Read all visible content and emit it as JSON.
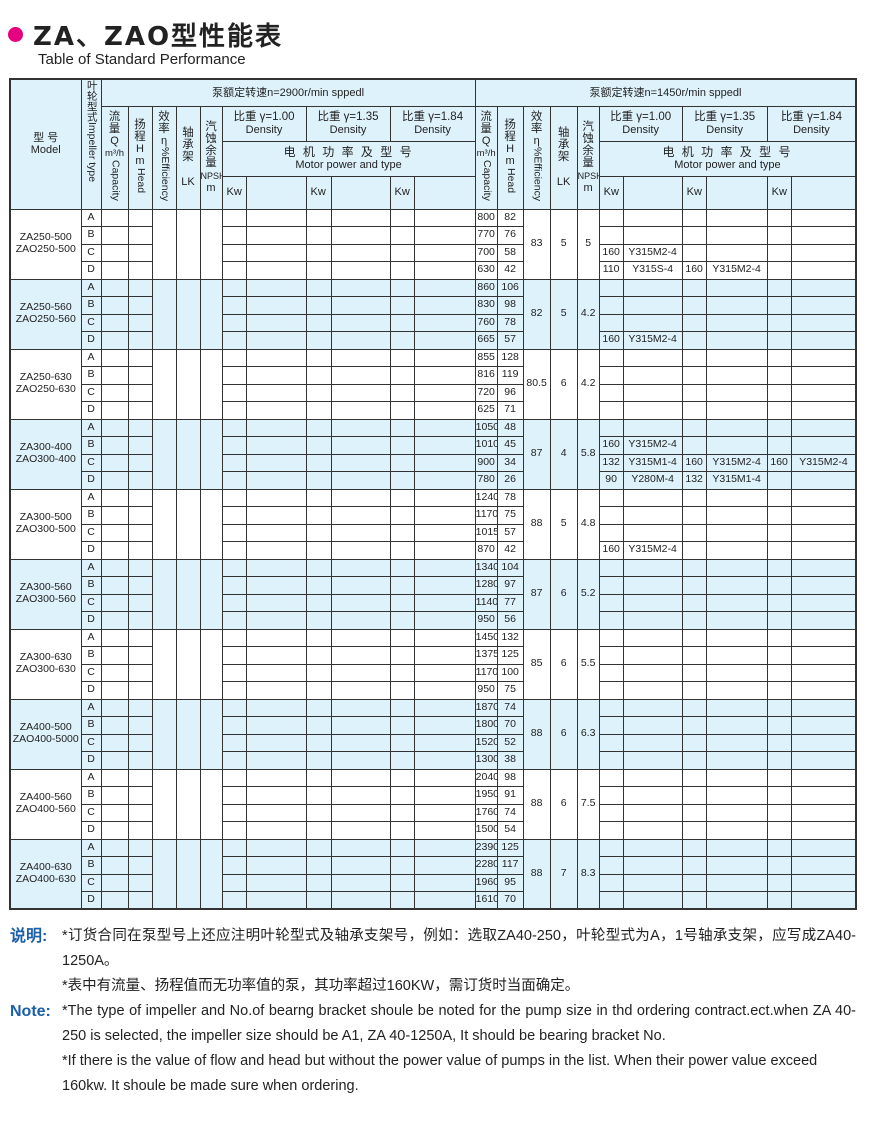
{
  "header": {
    "title": "ZA、ZAO型性能表",
    "subtitle": "Table of Standard Performance",
    "bullet_color": "#e5007f"
  },
  "table": {
    "colors": {
      "header_bg": "#def2fb",
      "band_bg": "#def2fb",
      "border": "#333333"
    },
    "col_model_cn": "型  号",
    "col_model_en": "Model",
    "col_impeller": "叶轮型式",
    "col_impeller_en": "Impeller type",
    "col_q_cn": "流量",
    "col_q_sym": "Q",
    "col_q_unit": "m³/h",
    "col_q_en": "Capacity",
    "col_h_cn": "扬程",
    "col_h_sym": "H",
    "col_h_unit": "m",
    "col_h_en": "Head",
    "col_eff_cn": "效率",
    "col_eff_sym": "η",
    "col_eff_en": "%Efficiency",
    "col_lk_cn": "轴承架",
    "col_lk_en": "LK",
    "col_npsh_cn": "汽蚀余量",
    "col_npsh_en": "NPSH",
    "col_npsh_unit": "m",
    "speed_2900": "泵额定转速n=2900r/min        sppedl",
    "speed_1450": "泵额定转速n=1450r/min        sppedl",
    "density": [
      "比重 γ=1.00",
      "比重 γ=1.35",
      "比重 γ=1.84"
    ],
    "density_en": "Density",
    "motor_cn": "电 机 功 率 及 型 号",
    "motor_en": "Motor power and type",
    "kw": "Kw",
    "groups": [
      {
        "model_a": "ZA250-500",
        "model_b": "ZAO250-500",
        "eff": "83",
        "lk": "5",
        "npsh": "5",
        "band": "white",
        "rows": [
          {
            "imp": "A",
            "q": "800",
            "h": "82",
            "m": []
          },
          {
            "imp": "B",
            "q": "770",
            "h": "76",
            "m": []
          },
          {
            "imp": "C",
            "q": "700",
            "h": "58",
            "m": [
              [
                "160",
                "Y315M2-4"
              ]
            ]
          },
          {
            "imp": "D",
            "q": "630",
            "h": "42",
            "m": [
              [
                "110",
                "Y315S-4"
              ],
              [
                "160",
                "Y315M2-4"
              ]
            ]
          }
        ]
      },
      {
        "model_a": "ZA250-560",
        "model_b": "ZAO250-560",
        "eff": "82",
        "lk": "5",
        "npsh": "4.2",
        "band": "blue",
        "rows": [
          {
            "imp": "A",
            "q": "860",
            "h": "106",
            "m": []
          },
          {
            "imp": "B",
            "q": "830",
            "h": "98",
            "m": []
          },
          {
            "imp": "C",
            "q": "760",
            "h": "78",
            "m": []
          },
          {
            "imp": "D",
            "q": "665",
            "h": "57",
            "m": [
              [
                "160",
                "Y315M2-4"
              ]
            ]
          }
        ]
      },
      {
        "model_a": "ZA250-630",
        "model_b": "ZAO250-630",
        "eff": "80.5",
        "lk": "6",
        "npsh": "4.2",
        "band": "white",
        "rows": [
          {
            "imp": "A",
            "q": "855",
            "h": "128",
            "m": []
          },
          {
            "imp": "B",
            "q": "816",
            "h": "119",
            "m": []
          },
          {
            "imp": "C",
            "q": "720",
            "h": "96",
            "m": []
          },
          {
            "imp": "D",
            "q": "625",
            "h": "71",
            "m": []
          }
        ]
      },
      {
        "model_a": "ZA300-400",
        "model_b": "ZAO300-400",
        "eff": "87",
        "lk": "4",
        "npsh": "5.8",
        "band": "blue",
        "rows": [
          {
            "imp": "A",
            "q": "1050",
            "h": "48",
            "m": []
          },
          {
            "imp": "B",
            "q": "1010",
            "h": "45",
            "m": [
              [
                "160",
                "Y315M2-4"
              ]
            ]
          },
          {
            "imp": "C",
            "q": "900",
            "h": "34",
            "m": [
              [
                "132",
                "Y315M1-4"
              ],
              [
                "160",
                "Y315M2-4"
              ],
              [
                "160",
                "Y315M2-4"
              ]
            ]
          },
          {
            "imp": "D",
            "q": "780",
            "h": "26",
            "m": [
              [
                "90",
                "Y280M-4"
              ],
              [
                "132",
                "Y315M1-4"
              ]
            ]
          }
        ]
      },
      {
        "model_a": "ZA300-500",
        "model_b": "ZAO300-500",
        "eff": "88",
        "lk": "5",
        "npsh": "4.8",
        "band": "white",
        "rows": [
          {
            "imp": "A",
            "q": "1240",
            "h": "78",
            "m": []
          },
          {
            "imp": "B",
            "q": "1170",
            "h": "75",
            "m": []
          },
          {
            "imp": "C",
            "q": "1015",
            "h": "57",
            "m": []
          },
          {
            "imp": "D",
            "q": "870",
            "h": "42",
            "m": [
              [
                "160",
                "Y315M2-4"
              ]
            ]
          }
        ]
      },
      {
        "model_a": "ZA300-560",
        "model_b": "ZAO300-560",
        "eff": "87",
        "lk": "6",
        "npsh": "5.2",
        "band": "blue",
        "rows": [
          {
            "imp": "A",
            "q": "1340",
            "h": "104",
            "m": []
          },
          {
            "imp": "B",
            "q": "1280",
            "h": "97",
            "m": []
          },
          {
            "imp": "C",
            "q": "1140",
            "h": "77",
            "m": []
          },
          {
            "imp": "D",
            "q": "950",
            "h": "56",
            "m": []
          }
        ]
      },
      {
        "model_a": "ZA300-630",
        "model_b": "ZAO300-630",
        "eff": "85",
        "lk": "6",
        "npsh": "5.5",
        "band": "white",
        "rows": [
          {
            "imp": "A",
            "q": "1450",
            "h": "132",
            "m": []
          },
          {
            "imp": "B",
            "q": "1375",
            "h": "125",
            "m": []
          },
          {
            "imp": "C",
            "q": "1170",
            "h": "100",
            "m": []
          },
          {
            "imp": "D",
            "q": "950",
            "h": "75",
            "m": []
          }
        ]
      },
      {
        "model_a": "ZA400-500",
        "model_b": "ZAO400-5000",
        "eff": "88",
        "lk": "6",
        "npsh": "6.3",
        "band": "blue",
        "rows": [
          {
            "imp": "A",
            "q": "1870",
            "h": "74",
            "m": []
          },
          {
            "imp": "B",
            "q": "1800",
            "h": "70",
            "m": []
          },
          {
            "imp": "C",
            "q": "1520",
            "h": "52",
            "m": []
          },
          {
            "imp": "D",
            "q": "1300",
            "h": "38",
            "m": []
          }
        ]
      },
      {
        "model_a": "ZA400-560",
        "model_b": "ZAO400-560",
        "eff": "88",
        "lk": "6",
        "npsh": "7.5",
        "band": "white",
        "rows": [
          {
            "imp": "A",
            "q": "2040",
            "h": "98",
            "m": []
          },
          {
            "imp": "B",
            "q": "1950",
            "h": "91",
            "m": []
          },
          {
            "imp": "C",
            "q": "1760",
            "h": "74",
            "m": []
          },
          {
            "imp": "D",
            "q": "1500",
            "h": "54",
            "m": []
          }
        ]
      },
      {
        "model_a": "ZA400-630",
        "model_b": "ZAO400-630",
        "eff": "88",
        "lk": "7",
        "npsh": "8.3",
        "band": "blue",
        "rows": [
          {
            "imp": "A",
            "q": "2390",
            "h": "125",
            "m": []
          },
          {
            "imp": "B",
            "q": "2280",
            "h": "117",
            "m": []
          },
          {
            "imp": "C",
            "q": "1960",
            "h": "95",
            "m": []
          },
          {
            "imp": "D",
            "q": "1610",
            "h": "70",
            "m": []
          }
        ]
      }
    ]
  },
  "notes": {
    "cn_label": "说明:",
    "cn_1": "*订货合同在泵型号上还应注明叶轮型式及轴承支架号，例如：选取ZA40-250，叶轮型式为A，1号轴承支架，应写成ZA40-1250A。",
    "cn_2": "*表中有流量、扬程值而无功率值的泵，其功率超过160KW，需订货时当面确定。",
    "en_label": "Note:",
    "en_1": "*The type of impeller and No.of bearng bracket shoule be noted for the pump size in thd ordering contract.ect.when ZA 40-250 is selected, the impeller size should be A1, ZA 40-1250A, It should be bearing bracket No.",
    "en_2": "*If there is the value of flow and head but without the power value of pumps in the list. When their power value exceed 160kw. It shoule be made sure when ordering."
  }
}
